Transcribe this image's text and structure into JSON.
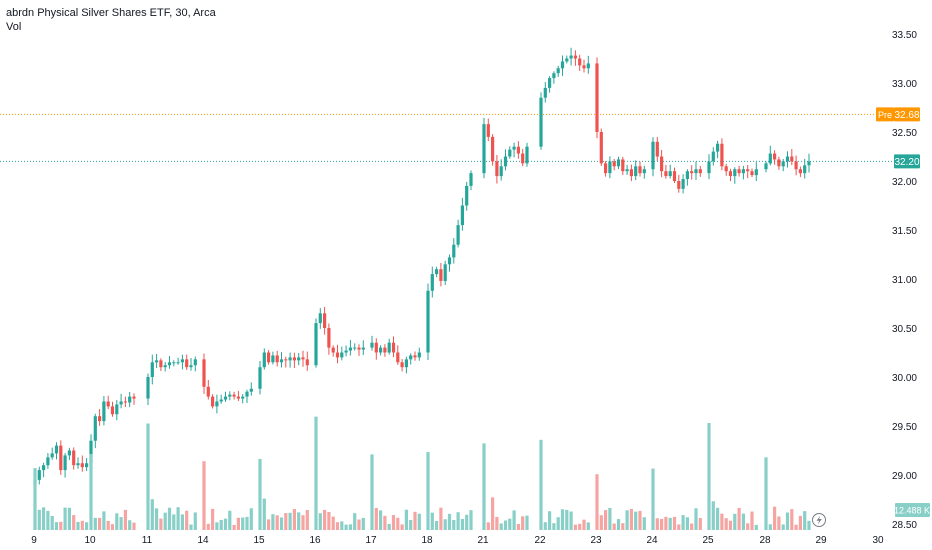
{
  "legend": {
    "title": "abrdn Physical Silver Shares ETF, 30, Arca",
    "volume_label": "Vol"
  },
  "colors": {
    "up": "#26a69a",
    "down": "#ef5350",
    "up_volume": "#88cfc8",
    "down_volume": "#f6a4a2",
    "pre_line": "#ff9800",
    "last_line": "#26a69a"
  },
  "chart_data": {
    "type": "candlestick",
    "title": "abrdn Physical Silver Shares ETF, 30, Arca",
    "price_axis": {
      "ticks": [
        "33.50",
        "33.00",
        "32.50",
        "32.00",
        "31.50",
        "31.00",
        "30.50",
        "30.00",
        "29.50",
        "29.00",
        "28.50"
      ],
      "range": [
        28.45,
        33.75
      ]
    },
    "time_axis": {
      "ticks": [
        "9",
        "10",
        "11",
        "14",
        "15",
        "16",
        "17",
        "18",
        "21",
        "22",
        "23",
        "24",
        "25",
        "28",
        "29",
        "30"
      ]
    },
    "markers": {
      "pre": {
        "label": "Pre",
        "value": "32.68"
      },
      "last": {
        "value": "32.20"
      },
      "volume": {
        "value": "12.488 K"
      }
    },
    "series": [
      {
        "day": "9",
        "closes": [
          28.95,
          29.05,
          29.1,
          29.18,
          29.22,
          29.3,
          29.05,
          29.2,
          29.25,
          29.1,
          29.12,
          29.08,
          29.12
        ]
      },
      {
        "day": "10",
        "closes": [
          29.35,
          29.6,
          29.55,
          29.75,
          29.7,
          29.62,
          29.72,
          29.75,
          29.74,
          29.8,
          29.78
        ]
      },
      {
        "day": "11",
        "closes": [
          30.0,
          30.15,
          30.17,
          30.1,
          30.12,
          30.15,
          30.15,
          30.15,
          30.18,
          30.1,
          30.12,
          30.18
        ]
      },
      {
        "day": "14",
        "closes": [
          29.9,
          29.8,
          29.7,
          29.75,
          29.77,
          29.8,
          29.82,
          29.8,
          29.78,
          29.8,
          29.85,
          29.88
        ]
      },
      {
        "day": "15",
        "closes": [
          30.1,
          30.25,
          30.15,
          30.22,
          30.15,
          30.18,
          30.17,
          30.2,
          30.17,
          30.2,
          30.18,
          30.12
        ]
      },
      {
        "day": "16",
        "closes": [
          30.55,
          30.65,
          30.5,
          30.3,
          30.25,
          30.2,
          30.25,
          30.27,
          30.3,
          30.3,
          30.28,
          30.3
        ]
      },
      {
        "day": "17",
        "closes": [
          30.35,
          30.25,
          30.3,
          30.25,
          30.35,
          30.25,
          30.15,
          30.1,
          30.18,
          30.22,
          30.2,
          30.25
        ]
      },
      {
        "day": "18",
        "closes": [
          30.88,
          31.05,
          31.1,
          30.98,
          31.15,
          31.22,
          31.35,
          31.55,
          31.75,
          31.95,
          32.08
        ]
      },
      {
        "day": "21",
        "closes": [
          32.58,
          32.45,
          32.2,
          32.05,
          32.15,
          32.25,
          32.32,
          32.35,
          32.28,
          32.18,
          32.35
        ]
      },
      {
        "day": "22",
        "closes": [
          32.85,
          32.95,
          33.05,
          33.1,
          33.15,
          33.22,
          33.25,
          33.28,
          33.25,
          33.18,
          33.15,
          33.2
        ]
      },
      {
        "day": "23",
        "closes": [
          32.5,
          32.18,
          32.08,
          32.2,
          32.15,
          32.22,
          32.1,
          32.12,
          32.05,
          32.15,
          32.08,
          32.12
        ]
      },
      {
        "day": "24",
        "closes": [
          32.4,
          32.25,
          32.1,
          32.05,
          32.1,
          32.0,
          31.92,
          32.02,
          32.1,
          32.08,
          32.12,
          32.08
        ]
      },
      {
        "day": "25",
        "closes": [
          32.2,
          32.3,
          32.38,
          32.15,
          32.1,
          32.05,
          32.12,
          32.08,
          32.12,
          32.1,
          32.06,
          32.12
        ]
      },
      {
        "day": "28",
        "closes": [
          32.18,
          32.28,
          32.22,
          32.15,
          32.2,
          32.25,
          32.2,
          32.12,
          32.08,
          32.16,
          32.2
        ]
      }
    ]
  }
}
